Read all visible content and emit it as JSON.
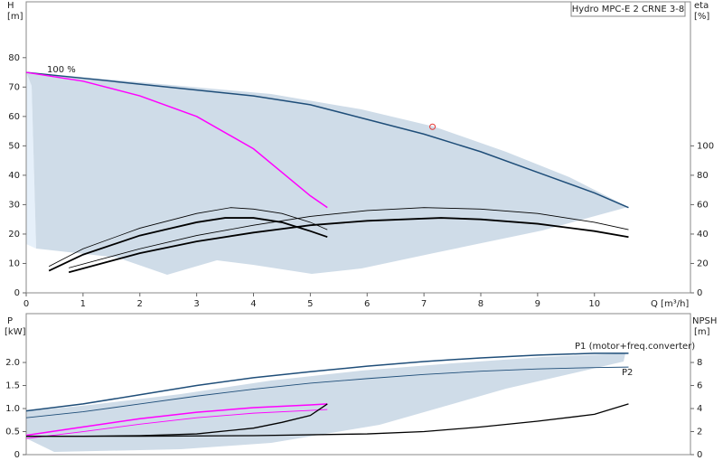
{
  "chart_data": [
    {
      "type": "line",
      "title": "Hydro MPC-E 2 CRNE 3-8",
      "ylabel": "H",
      "yunit": "[m]",
      "y2label": "eta",
      "y2unit": "[%]",
      "xlabel": "Q [m³/h]",
      "xlim": [
        0,
        11.69
      ],
      "xticks": [
        0,
        1,
        2,
        3,
        4,
        5,
        6,
        7,
        8,
        9,
        10
      ],
      "ylim": [
        0,
        99
      ],
      "yticks": [
        0,
        10,
        20,
        30,
        40,
        50,
        60,
        70,
        80
      ],
      "y2lim": [
        0,
        198
      ],
      "y2ticks": [
        0,
        20,
        40,
        60,
        80,
        100
      ],
      "grid": false,
      "series": [
        {
          "color": "#1f4e79",
          "width": 1.5,
          "x": [
            0,
            1,
            2,
            3,
            4,
            5,
            6,
            7,
            8,
            9,
            10,
            10.6
          ],
          "values": [
            75,
            73,
            71,
            69,
            67,
            64,
            59,
            54,
            48,
            41,
            34,
            29
          ]
        },
        {
          "name": "100 %",
          "color": "#ff00ff",
          "width": 1.5,
          "x": [
            0,
            1,
            2,
            3,
            4,
            5,
            5.3
          ],
          "values": [
            75,
            72,
            67,
            60,
            49,
            33,
            29
          ]
        },
        {
          "color": "#000000",
          "width": 0.8,
          "axis": "y2",
          "x": [
            0.4,
            1,
            2,
            3,
            3.6,
            4,
            4.5,
            5,
            5.3
          ],
          "values": [
            18,
            30,
            44,
            54,
            58,
            57,
            54,
            48,
            43
          ]
        },
        {
          "color": "#000000",
          "width": 1.8,
          "axis": "y2",
          "x": [
            0.4,
            1,
            2,
            3,
            3.5,
            4,
            4.5,
            5,
            5.3
          ],
          "values": [
            15,
            26,
            39,
            48,
            51,
            51,
            48,
            42,
            38
          ]
        },
        {
          "color": "#000000",
          "width": 0.8,
          "axis": "y2",
          "x": [
            0.75,
            2,
            3,
            4,
            5,
            6,
            7,
            8,
            9,
            10,
            10.6
          ],
          "values": [
            17,
            30,
            39,
            46,
            52,
            56,
            58,
            57,
            54,
            48,
            43
          ]
        },
        {
          "color": "#000000",
          "width": 1.8,
          "axis": "y2",
          "x": [
            0.75,
            2,
            3,
            4,
            5,
            6,
            7.3,
            8,
            9,
            10,
            10.6
          ],
          "values": [
            14,
            27,
            35,
            41,
            46,
            49,
            51,
            50,
            47,
            42,
            38
          ]
        }
      ],
      "duty_point": {
        "x": 7.15,
        "y": 56.5,
        "color": "#e53935"
      }
    },
    {
      "type": "line",
      "ylabel": "P",
      "yunit": "[kW]",
      "y2label": "NPSH",
      "y2unit": "[m]",
      "xlim": [
        0,
        11.69
      ],
      "ylim": [
        0,
        3.06
      ],
      "yticks": [
        0,
        0.5,
        {
          "value": 1,
          "label": "1.0"
        },
        1.5,
        {
          "value": 2,
          "label": "2.0"
        }
      ],
      "y2lim": [
        0,
        12.24
      ],
      "y2ticks": [
        0,
        2,
        4,
        6,
        8
      ],
      "grid": false,
      "series": [
        {
          "name": "P1 (motor+freq.converter)",
          "color": "#1f4e79",
          "width": 1.5,
          "x": [
            0,
            1,
            2,
            3,
            4,
            5,
            6,
            7,
            8,
            9,
            10,
            10.6
          ],
          "values": [
            0.95,
            1.1,
            1.3,
            1.5,
            1.67,
            1.8,
            1.92,
            2.02,
            2.1,
            2.16,
            2.2,
            2.2
          ]
        },
        {
          "name": "P2",
          "color": "#1f4e79",
          "width": 0.9,
          "x": [
            0,
            1,
            2,
            3,
            4,
            5,
            6,
            7,
            8,
            9,
            10,
            10.6
          ],
          "values": [
            0.8,
            0.93,
            1.1,
            1.27,
            1.42,
            1.55,
            1.65,
            1.74,
            1.81,
            1.86,
            1.89,
            1.9
          ]
        },
        {
          "color": "#ff00ff",
          "width": 1.5,
          "x": [
            0,
            1,
            2,
            3,
            4,
            5,
            5.3
          ],
          "values": [
            0.42,
            0.6,
            0.78,
            0.92,
            1.02,
            1.08,
            1.1
          ]
        },
        {
          "color": "#ff00ff",
          "width": 0.9,
          "x": [
            0,
            1,
            2,
            3,
            4,
            5,
            5.3
          ],
          "values": [
            0.35,
            0.5,
            0.66,
            0.8,
            0.9,
            0.96,
            0.98
          ]
        },
        {
          "color": "#000000",
          "width": 1.3,
          "axis": "y2",
          "x": [
            0,
            1,
            2,
            3,
            4,
            4.5,
            5,
            5.3
          ],
          "values": [
            1.6,
            1.6,
            1.65,
            1.8,
            2.3,
            2.8,
            3.4,
            4.4
          ]
        },
        {
          "color": "#000000",
          "width": 1.3,
          "axis": "y2",
          "x": [
            0,
            2,
            4,
            6,
            7,
            8,
            9,
            10,
            10.6
          ],
          "values": [
            1.6,
            1.6,
            1.65,
            1.8,
            2.0,
            2.4,
            2.9,
            3.5,
            4.4
          ]
        }
      ]
    }
  ]
}
